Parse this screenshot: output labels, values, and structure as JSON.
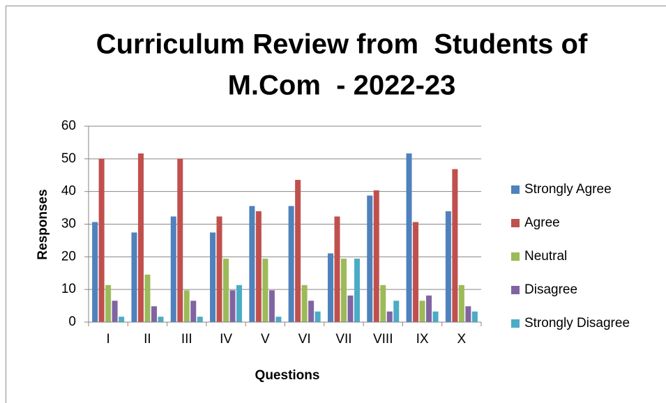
{
  "chart_data": {
    "type": "bar",
    "title": [
      "Curriculum Review from  Students of",
      "M.Com  - 2022-23"
    ],
    "x_label": "Questions",
    "y_label": "Responses",
    "categories": [
      "I",
      "II",
      "III",
      "IV",
      "V",
      "VI",
      "VII",
      "VIII",
      "IX",
      "X"
    ],
    "series": [
      {
        "name": "Strongly Agree",
        "color": "#4f81bd",
        "values": [
          30.6,
          27.4,
          32.3,
          27.4,
          35.5,
          35.5,
          21,
          38.7,
          51.6,
          33.9
        ]
      },
      {
        "name": "Agree",
        "color": "#c0504d",
        "values": [
          50,
          51.6,
          50,
          32.3,
          33.9,
          43.5,
          32.3,
          40.3,
          30.6,
          46.8
        ]
      },
      {
        "name": "Neutral",
        "color": "#9bbb59",
        "values": [
          11.3,
          14.5,
          9.7,
          19.4,
          19.4,
          11.3,
          19.4,
          11.3,
          6.5,
          11.3
        ]
      },
      {
        "name": "Disagree",
        "color": "#8064a2",
        "values": [
          6.5,
          4.8,
          6.5,
          9.7,
          9.7,
          6.5,
          8.1,
          3.2,
          8.1,
          4.8
        ]
      },
      {
        "name": "Strongly Disagree",
        "color": "#4bacc6",
        "values": [
          1.6,
          1.6,
          1.6,
          11.3,
          1.6,
          3.2,
          19.4,
          6.5,
          3.2,
          3.2
        ]
      }
    ],
    "ylim": [
      0,
      60
    ],
    "yticks": [
      0,
      10,
      20,
      30,
      40,
      50,
      60
    ],
    "grid": true,
    "legend": "right"
  }
}
